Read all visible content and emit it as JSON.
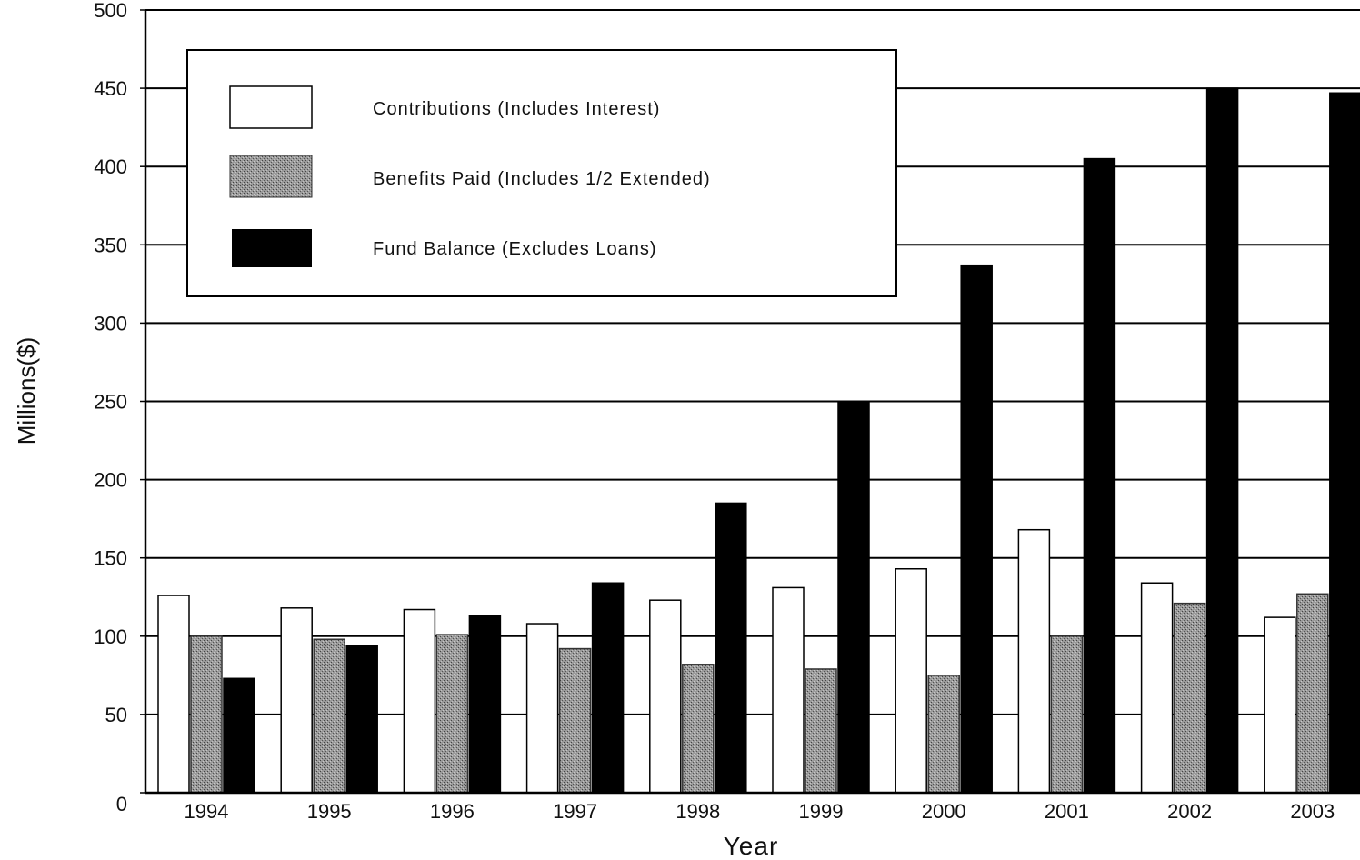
{
  "chart_data": {
    "type": "bar",
    "title": "",
    "xlabel": "Year",
    "ylabel": "Millions($)",
    "ylim": [
      0,
      500
    ],
    "yticks": [
      0,
      50,
      100,
      150,
      200,
      250,
      300,
      350,
      400,
      450,
      500
    ],
    "grid": true,
    "legend_position": "top-left",
    "categories": [
      "1994",
      "1995",
      "1996",
      "1997",
      "1998",
      "1999",
      "2000",
      "2001",
      "2002",
      "2003"
    ],
    "series": [
      {
        "name": "Contributions (Includes Interest)",
        "color": "#ffffff",
        "values": [
          126,
          118,
          117,
          108,
          123,
          131,
          143,
          168,
          134,
          112
        ]
      },
      {
        "name": "Benefits Paid (Includes 1/2 Extended)",
        "color": "#8a8a8a",
        "values": [
          100,
          98,
          101,
          92,
          82,
          79,
          75,
          100,
          121,
          127
        ]
      },
      {
        "name": "Fund Balance (Excludes Loans)",
        "color": "#000000",
        "values": [
          73,
          94,
          113,
          134,
          185,
          250,
          337,
          405,
          450,
          447
        ]
      }
    ]
  }
}
